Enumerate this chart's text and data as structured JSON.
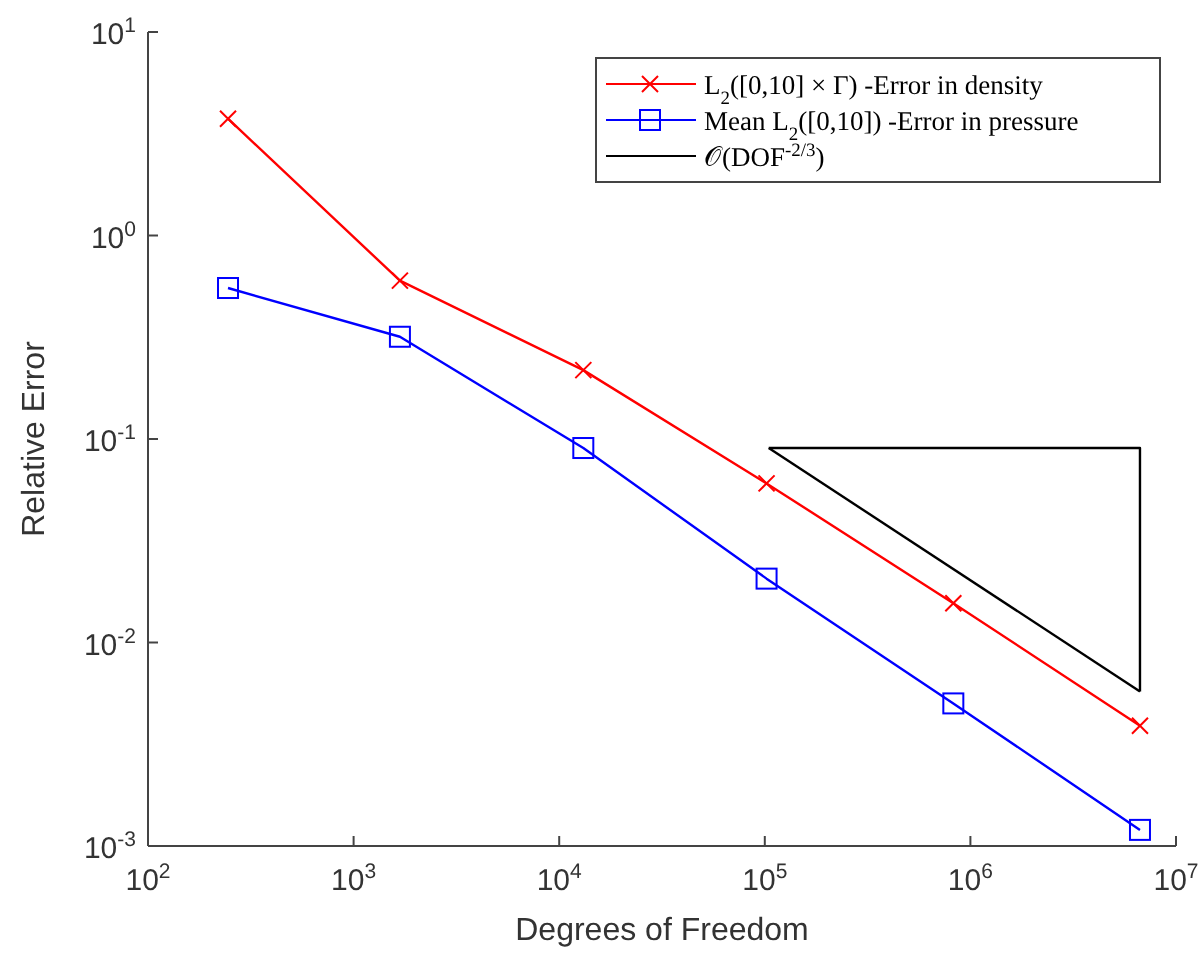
{
  "chart_data": {
    "type": "line",
    "xlabel": "Degrees of Freedom",
    "ylabel": "Relative Error",
    "log": "xy",
    "xlim": [
      100,
      10000000
    ],
    "ylim": [
      0.001,
      10
    ],
    "xticks": [
      {
        "value": 100,
        "label": "10$^{2}$"
      },
      {
        "value": 1000,
        "label": "10$^{3}$"
      },
      {
        "value": 10000,
        "label": "10$^{4}$"
      },
      {
        "value": 100000,
        "label": "10$^{5}$"
      },
      {
        "value": 1000000,
        "label": "10$^{6}$"
      },
      {
        "value": 10000000,
        "label": "10$^{7}$"
      }
    ],
    "yticks": [
      {
        "value": 0.001,
        "label": "10$^{-3}$"
      },
      {
        "value": 0.01,
        "label": "10$^{-2}$"
      },
      {
        "value": 0.1,
        "label": "10$^{-1}$"
      },
      {
        "value": 1,
        "label": "10$^{0}$"
      },
      {
        "value": 10,
        "label": "10$^{1}$"
      }
    ],
    "grid": false,
    "legend": "top right",
    "series": [
      {
        "name": "L$_{2}$([0,10] × Γ) -Error in density",
        "color": "#ff0000",
        "marker": "cross",
        "x": [
          245,
          1680,
          13100,
          102000,
          826000,
          6680000
        ],
        "values": [
          3.75,
          0.6,
          0.218,
          0.0605,
          0.0156,
          0.0039
        ]
      },
      {
        "name": "Mean L$_{2}$([0,10]) -Error in pressure",
        "color": "#0000ff",
        "marker": "square",
        "x": [
          245,
          1680,
          13100,
          102000,
          826000,
          6680000
        ],
        "values": [
          0.552,
          0.318,
          0.0903,
          0.0206,
          0.00502,
          0.0012
        ]
      },
      {
        "name": "𝒪(DOF$^{-2/3}$)",
        "color": "#000000",
        "marker": "none",
        "x": [
          104500,
          6680000
        ],
        "values": [
          0.0903,
          0.00575
        ]
      },
      {
        "color": "#000000",
        "marker": "none",
        "x": [
          104500,
          6680000,
          6680000
        ],
        "values": [
          0.0903,
          0.0903,
          0.00575
        ]
      }
    ]
  }
}
